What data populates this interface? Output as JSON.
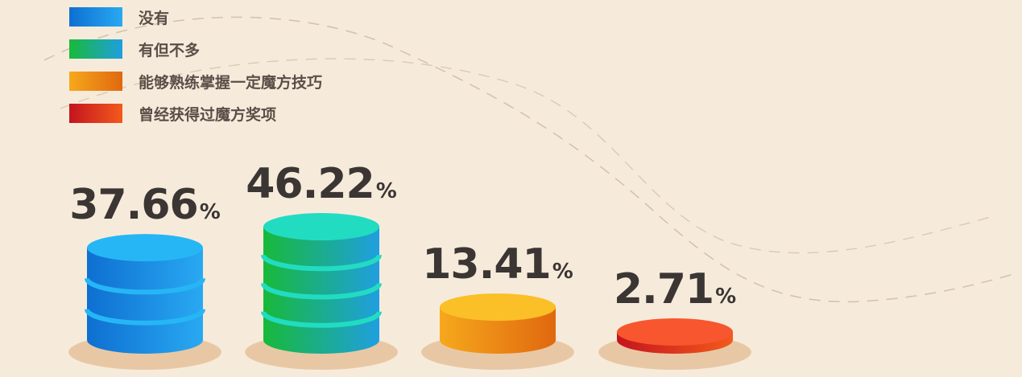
{
  "chart_data": {
    "type": "bar",
    "categories": [
      "没有",
      "有但不多",
      "能够熟练掌握一定魔方技巧",
      "曾经获得过魔方奖项"
    ],
    "values": [
      37.66,
      46.22,
      13.41,
      2.71
    ],
    "value_labels": [
      "37.66",
      "46.22",
      "13.41",
      "2.71"
    ],
    "unit": "%",
    "legend_position": "top-left",
    "colors": [
      {
        "body_from": "#0e6fd1",
        "body_to": "#29a9f2",
        "top": "#26b6f5"
      },
      {
        "body_from": "#18b93a",
        "body_to": "#1f9fe0",
        "top": "#22dcc2"
      },
      {
        "body_from": "#f6a81c",
        "body_to": "#e0680f",
        "top": "#fbbf27"
      },
      {
        "body_from": "#c4141e",
        "body_to": "#f35a1c",
        "top": "#f7562e"
      }
    ]
  }
}
